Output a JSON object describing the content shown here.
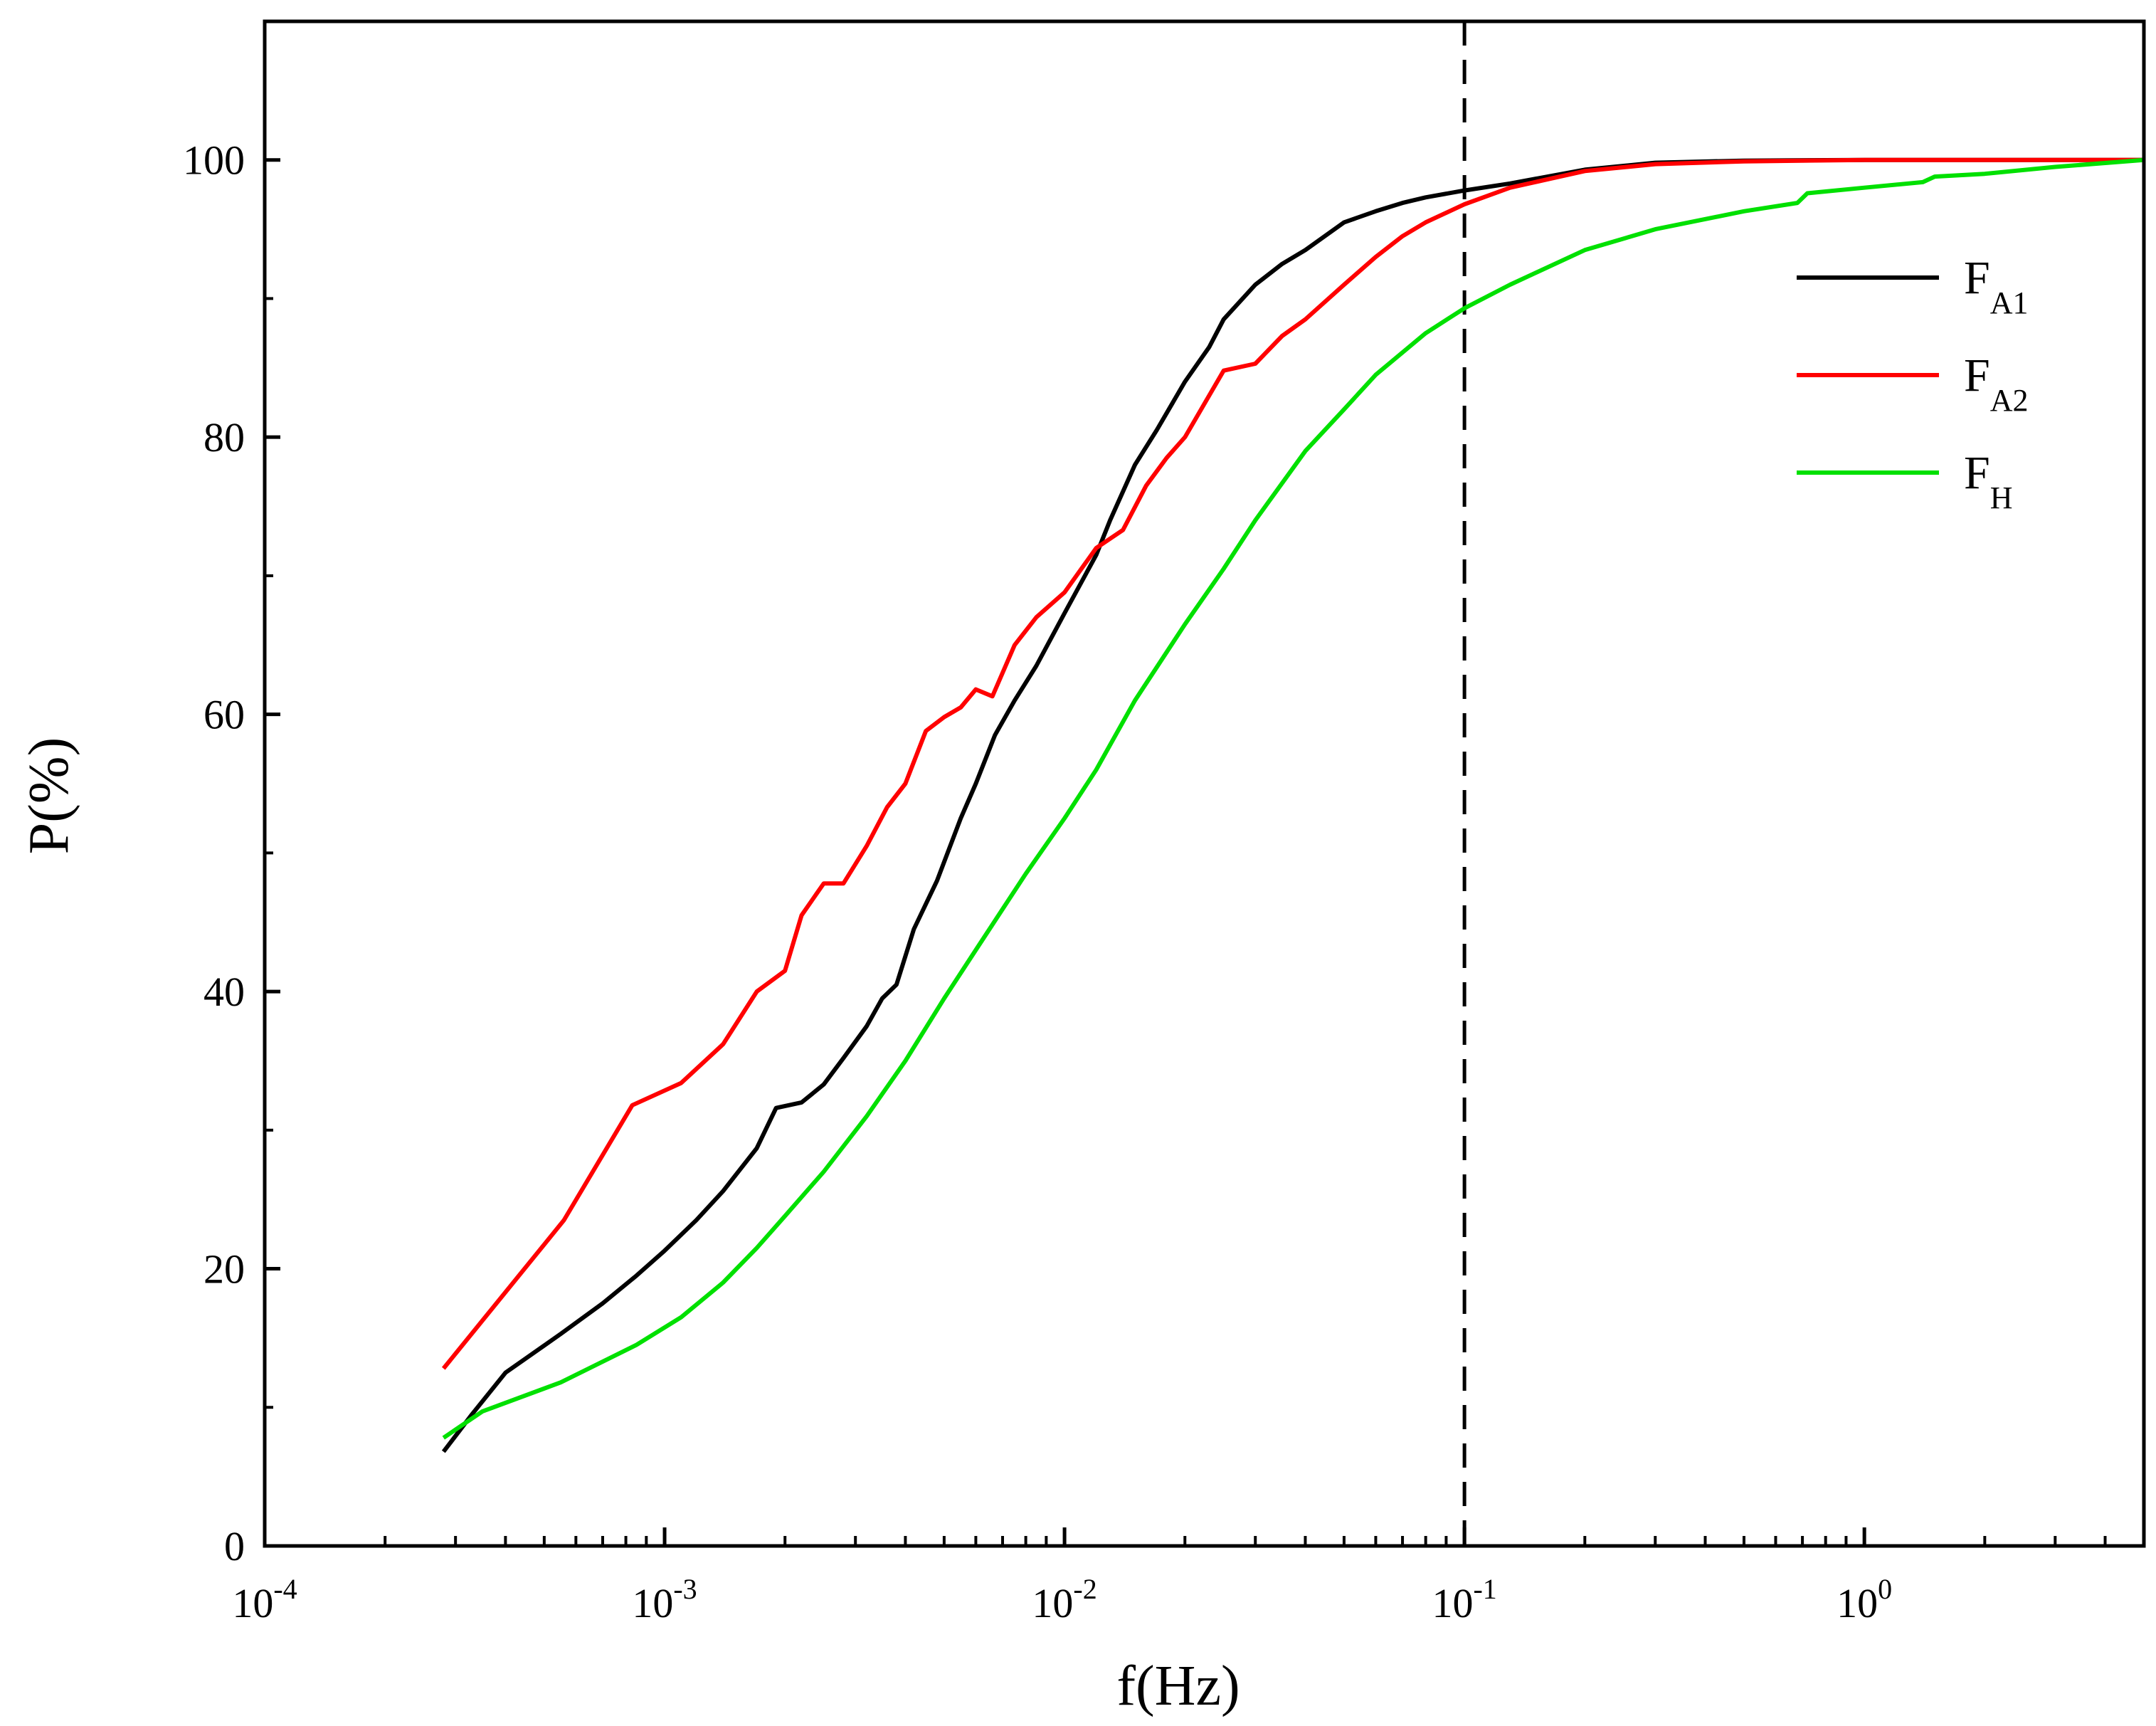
{
  "chart_data": {
    "type": "line",
    "xlabel": "f(Hz)",
    "ylabel": "P(%)",
    "x_scale": "log",
    "xlim": [
      0.0001,
      5
    ],
    "ylim": [
      0,
      110
    ],
    "x_ticks": [
      {
        "value": 0.0001,
        "base": "10",
        "exp": "-4"
      },
      {
        "value": 0.001,
        "base": "10",
        "exp": "-3"
      },
      {
        "value": 0.01,
        "base": "10",
        "exp": "-2"
      },
      {
        "value": 0.1,
        "base": "10",
        "exp": "-1"
      },
      {
        "value": 1,
        "base": "10",
        "exp": "0"
      }
    ],
    "y_ticks": [
      0,
      20,
      40,
      60,
      80,
      100
    ],
    "grid": false,
    "legend_position": "top-right",
    "reference_line": {
      "x": 0.1,
      "style": "dashed",
      "color": "#000000"
    },
    "series": [
      {
        "main": "F",
        "sub": "A1",
        "color": "#000000",
        "points": [
          [
            0.00028,
            6.8
          ],
          [
            0.00033,
            9.5
          ],
          [
            0.0004,
            12.5
          ],
          [
            0.00055,
            15.3
          ],
          [
            0.0007,
            17.5
          ],
          [
            0.00085,
            19.5
          ],
          [
            0.001,
            21.3
          ],
          [
            0.0012,
            23.5
          ],
          [
            0.0014,
            25.6
          ],
          [
            0.0017,
            28.7
          ],
          [
            0.0019,
            31.6
          ],
          [
            0.0022,
            32
          ],
          [
            0.0025,
            33.3
          ],
          [
            0.0028,
            35.2
          ],
          [
            0.0032,
            37.5
          ],
          [
            0.0035,
            39.5
          ],
          [
            0.0038,
            40.5
          ],
          [
            0.0042,
            44.5
          ],
          [
            0.0048,
            48
          ],
          [
            0.0055,
            52.5
          ],
          [
            0.006,
            55
          ],
          [
            0.0067,
            58.5
          ],
          [
            0.0075,
            61
          ],
          [
            0.0085,
            63.5
          ],
          [
            0.01,
            67.3
          ],
          [
            0.012,
            71.5
          ],
          [
            0.013,
            74
          ],
          [
            0.015,
            78
          ],
          [
            0.017,
            80.5
          ],
          [
            0.02,
            84
          ],
          [
            0.023,
            86.5
          ],
          [
            0.025,
            88.5
          ],
          [
            0.03,
            91
          ],
          [
            0.035,
            92.5
          ],
          [
            0.04,
            93.5
          ],
          [
            0.05,
            95.5
          ],
          [
            0.06,
            96.3
          ],
          [
            0.07,
            96.9
          ],
          [
            0.08,
            97.3
          ],
          [
            0.1,
            97.8
          ],
          [
            0.13,
            98.3
          ],
          [
            0.2,
            99.3
          ],
          [
            0.3,
            99.8
          ],
          [
            0.5,
            99.95
          ],
          [
            1,
            100
          ],
          [
            5,
            100
          ]
        ]
      },
      {
        "main": "F",
        "sub": "A2",
        "color": "#ff0000",
        "points": [
          [
            0.00028,
            12.8
          ],
          [
            0.00056,
            23.5
          ],
          [
            0.00083,
            31.8
          ],
          [
            0.0011,
            33.4
          ],
          [
            0.0014,
            36.2
          ],
          [
            0.0017,
            40
          ],
          [
            0.002,
            41.5
          ],
          [
            0.0022,
            45.5
          ],
          [
            0.0025,
            47.8
          ],
          [
            0.0028,
            47.8
          ],
          [
            0.0032,
            50.5
          ],
          [
            0.0036,
            53.3
          ],
          [
            0.004,
            55
          ],
          [
            0.0045,
            58.8
          ],
          [
            0.005,
            59.8
          ],
          [
            0.0055,
            60.5
          ],
          [
            0.006,
            61.8
          ],
          [
            0.0066,
            61.3
          ],
          [
            0.0075,
            65
          ],
          [
            0.0085,
            67
          ],
          [
            0.01,
            68.8
          ],
          [
            0.012,
            72
          ],
          [
            0.014,
            73.3
          ],
          [
            0.016,
            76.5
          ],
          [
            0.018,
            78.5
          ],
          [
            0.02,
            80
          ],
          [
            0.025,
            84.8
          ],
          [
            0.03,
            85.3
          ],
          [
            0.035,
            87.3
          ],
          [
            0.04,
            88.5
          ],
          [
            0.05,
            91
          ],
          [
            0.06,
            93
          ],
          [
            0.07,
            94.5
          ],
          [
            0.08,
            95.5
          ],
          [
            0.1,
            96.8
          ],
          [
            0.13,
            98
          ],
          [
            0.2,
            99.2
          ],
          [
            0.3,
            99.7
          ],
          [
            0.5,
            99.9
          ],
          [
            1,
            100
          ],
          [
            5,
            100
          ]
        ]
      },
      {
        "main": "F",
        "sub": "H",
        "color": "#00e000",
        "points": [
          [
            0.00028,
            7.8
          ],
          [
            0.00035,
            9.7
          ],
          [
            0.00055,
            11.8
          ],
          [
            0.00085,
            14.5
          ],
          [
            0.0011,
            16.5
          ],
          [
            0.0014,
            19
          ],
          [
            0.0017,
            21.5
          ],
          [
            0.002,
            23.8
          ],
          [
            0.0025,
            27
          ],
          [
            0.0032,
            31
          ],
          [
            0.004,
            35
          ],
          [
            0.005,
            39.5
          ],
          [
            0.006,
            43
          ],
          [
            0.008,
            48.5
          ],
          [
            0.01,
            52.5
          ],
          [
            0.012,
            56
          ],
          [
            0.015,
            61
          ],
          [
            0.02,
            66.5
          ],
          [
            0.025,
            70.5
          ],
          [
            0.03,
            74
          ],
          [
            0.04,
            79
          ],
          [
            0.05,
            82
          ],
          [
            0.06,
            84.5
          ],
          [
            0.08,
            87.5
          ],
          [
            0.1,
            89.3
          ],
          [
            0.13,
            91
          ],
          [
            0.2,
            93.5
          ],
          [
            0.3,
            95
          ],
          [
            0.5,
            96.3
          ],
          [
            0.68,
            96.9
          ],
          [
            0.72,
            97.6
          ],
          [
            1,
            98
          ],
          [
            1.4,
            98.4
          ],
          [
            1.5,
            98.8
          ],
          [
            2,
            99
          ],
          [
            3,
            99.5
          ],
          [
            5,
            100
          ]
        ]
      }
    ]
  }
}
